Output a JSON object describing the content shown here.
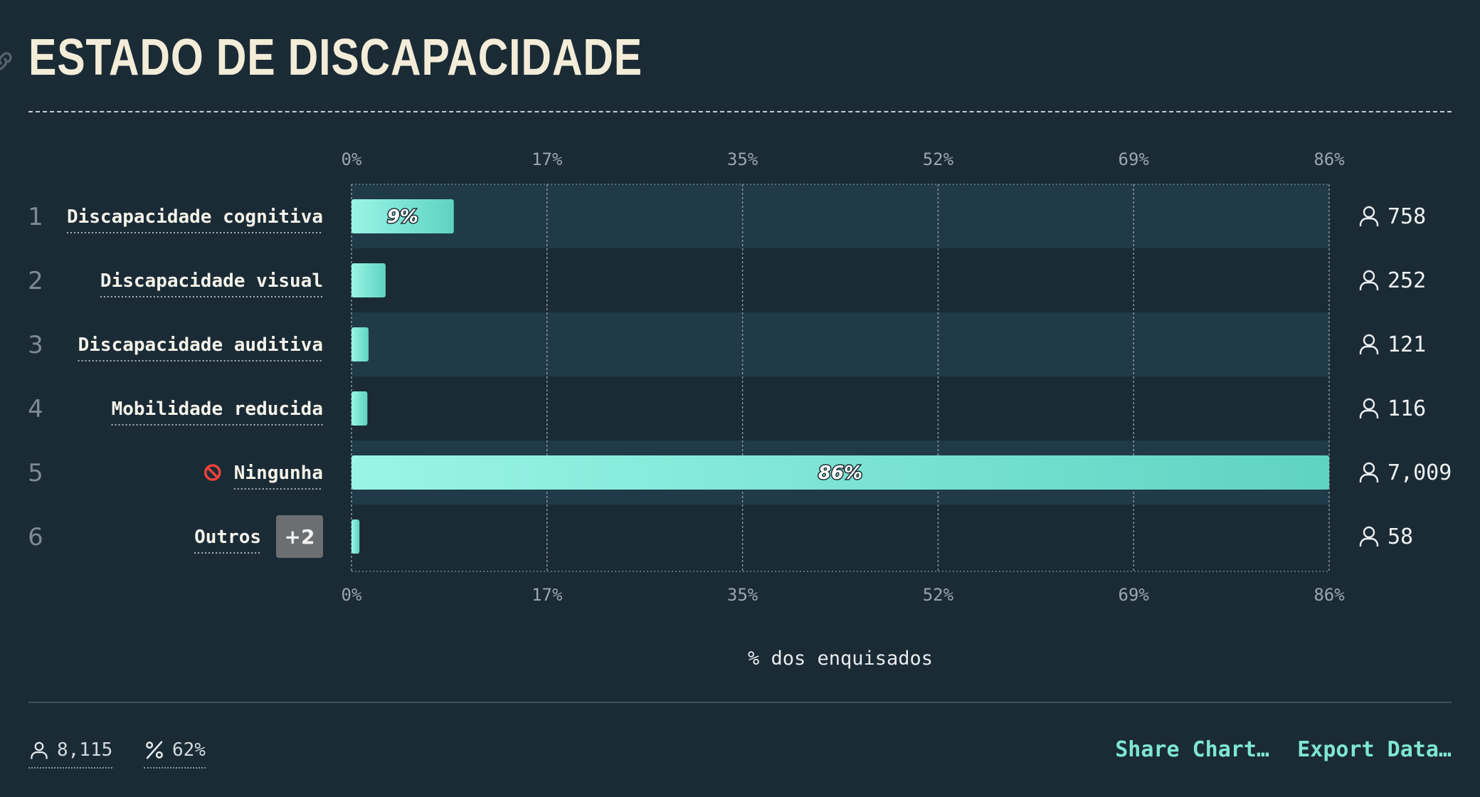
{
  "title": "ESTADO DE DISCAPACIDADE",
  "chart_data": {
    "type": "bar",
    "orientation": "horizontal",
    "title": "ESTADO DE DISCAPACIDADE",
    "xlabel": "% dos enquisados",
    "ylabel": "",
    "xlim": [
      0,
      86
    ],
    "tick_labels": [
      "0%",
      "17%",
      "35%",
      "52%",
      "69%",
      "86%"
    ],
    "categories": [
      {
        "rank": "1",
        "label": "Discapacidade cognitiva",
        "value": 9,
        "count": "758",
        "data_label": "9%"
      },
      {
        "rank": "2",
        "label": "Discapacidade visual",
        "value": 3,
        "count": "252",
        "data_label": ""
      },
      {
        "rank": "3",
        "label": "Discapacidade auditiva",
        "value": 1.5,
        "count": "121",
        "data_label": ""
      },
      {
        "rank": "4",
        "label": "Mobilidade reducida",
        "value": 1.4,
        "count": "116",
        "data_label": ""
      },
      {
        "rank": "5",
        "label": "Ningunha",
        "value": 86,
        "count": "7,009",
        "data_label": "86%",
        "icon": "prohibited-icon"
      },
      {
        "rank": "6",
        "label": "Outros",
        "value": 0.7,
        "count": "58",
        "data_label": "",
        "badge": "+2"
      }
    ],
    "grid": true,
    "colors": {
      "bar_start": "#9af5e6",
      "bar_end": "#5fd3c2",
      "band": "#203a4a",
      "background": "#1a2b35"
    }
  },
  "footer": {
    "respondents": "8,115",
    "percent": "62%",
    "share_label": "Share Chart…",
    "export_label": "Export Data…"
  }
}
